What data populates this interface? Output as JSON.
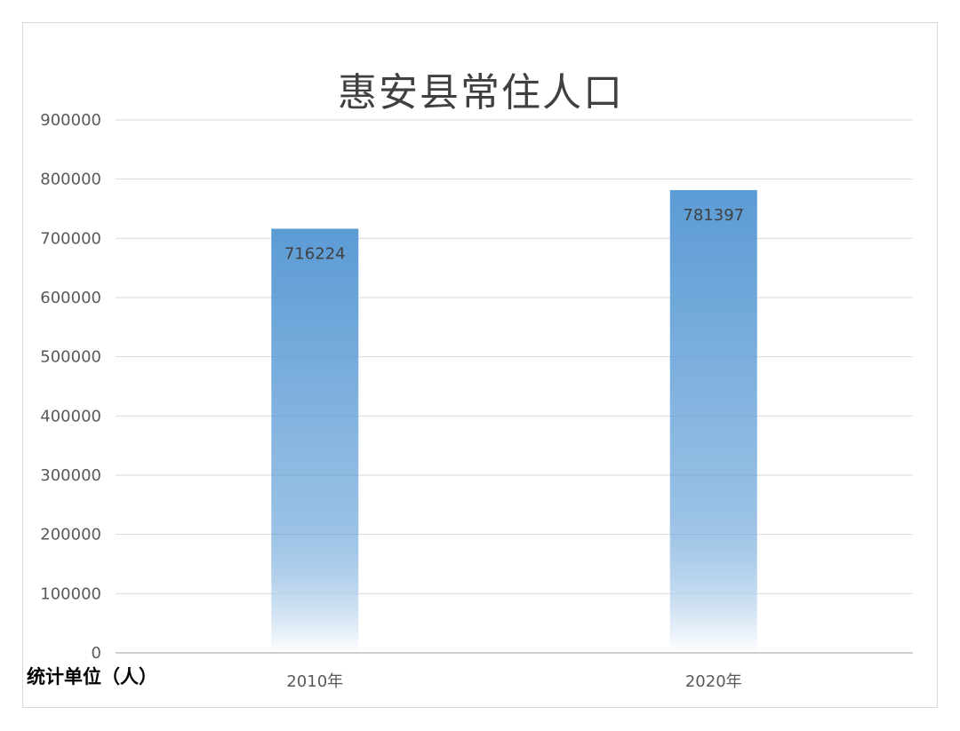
{
  "note": "统计单位（人）",
  "colors": {
    "bar_top": "#5b9bd5",
    "bar_bottom": "#ffffff",
    "grid": "#d9d9d9",
    "axis": "#bfbfbf"
  },
  "chart_data": {
    "type": "bar",
    "title": "惠安县常住人口",
    "categories": [
      "2010年",
      "2020年"
    ],
    "values": [
      716224,
      781397
    ],
    "ylim": [
      0,
      900000
    ],
    "yticks": [
      0,
      100000,
      200000,
      300000,
      400000,
      500000,
      600000,
      700000,
      800000,
      900000
    ],
    "grid": true,
    "data_labels": true,
    "legend": "none"
  }
}
